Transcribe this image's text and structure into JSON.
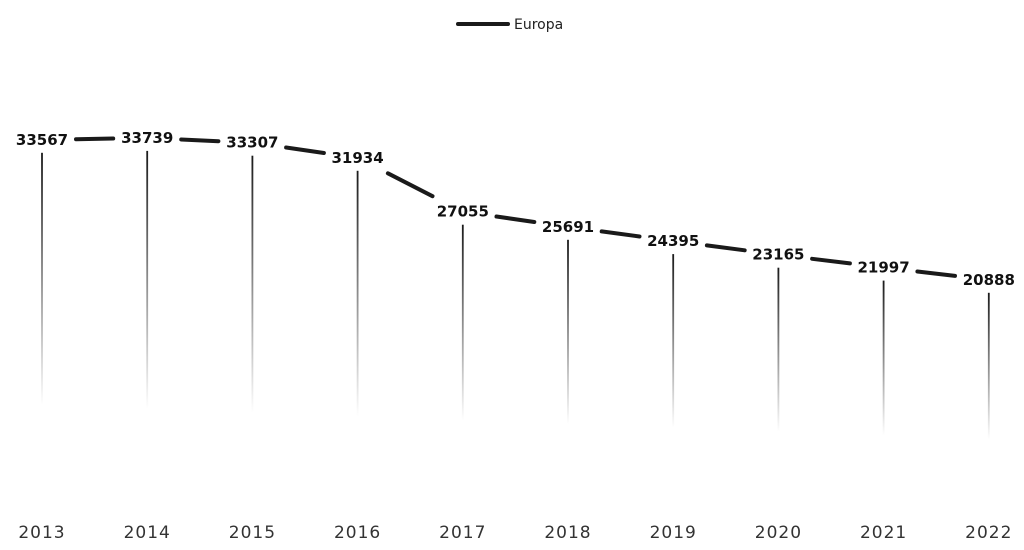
{
  "chart_data": {
    "type": "line",
    "categories": [
      "2013",
      "2014",
      "2015",
      "2016",
      "2017",
      "2018",
      "2019",
      "2020",
      "2021",
      "2022"
    ],
    "series": [
      {
        "name": "Europa",
        "values": [
          33567,
          33739,
          33307,
          31934,
          27055,
          25691,
          24395,
          23165,
          21997,
          20888
        ],
        "color": "#1a1a1a"
      }
    ],
    "title": "",
    "xlabel": "",
    "ylabel": "",
    "ylim": [
      0,
      40000
    ],
    "grid": false,
    "legend": "top-center",
    "data_labels": true,
    "drop_lines": true
  }
}
